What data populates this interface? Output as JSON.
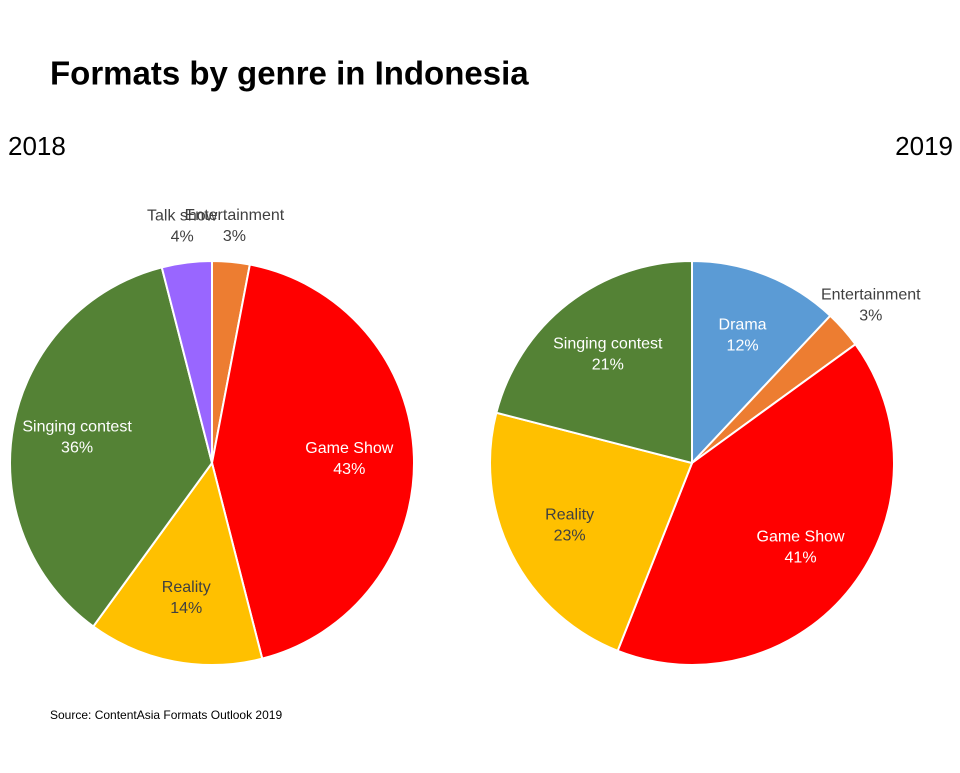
{
  "title": "Formats by genre in Indonesia",
  "source": "Source: ContentAsia Formats Outlook 2019",
  "chart_data": [
    {
      "type": "pie",
      "title": "2018",
      "categories": [
        "Entertainment",
        "Game Show",
        "Reality",
        "Singing contest",
        "Talk show"
      ],
      "values": [
        3,
        43,
        14,
        36,
        4
      ],
      "value_labels": [
        "3%",
        "43%",
        "14%",
        "36%",
        "4%"
      ],
      "colors": [
        "#ed7d31",
        "#ff0000",
        "#ffc000",
        "#548235",
        "#9966ff"
      ]
    },
    {
      "type": "pie",
      "title": "2019",
      "categories": [
        "Drama",
        "Entertainment",
        "Game Show",
        "Reality",
        "Singing contest"
      ],
      "values": [
        12,
        3,
        41,
        23,
        21
      ],
      "value_labels": [
        "12%",
        "3%",
        "41%",
        "23%",
        "21%"
      ],
      "colors": [
        "#5b9bd5",
        "#ed7d31",
        "#ff0000",
        "#ffc000",
        "#548235"
      ]
    }
  ]
}
